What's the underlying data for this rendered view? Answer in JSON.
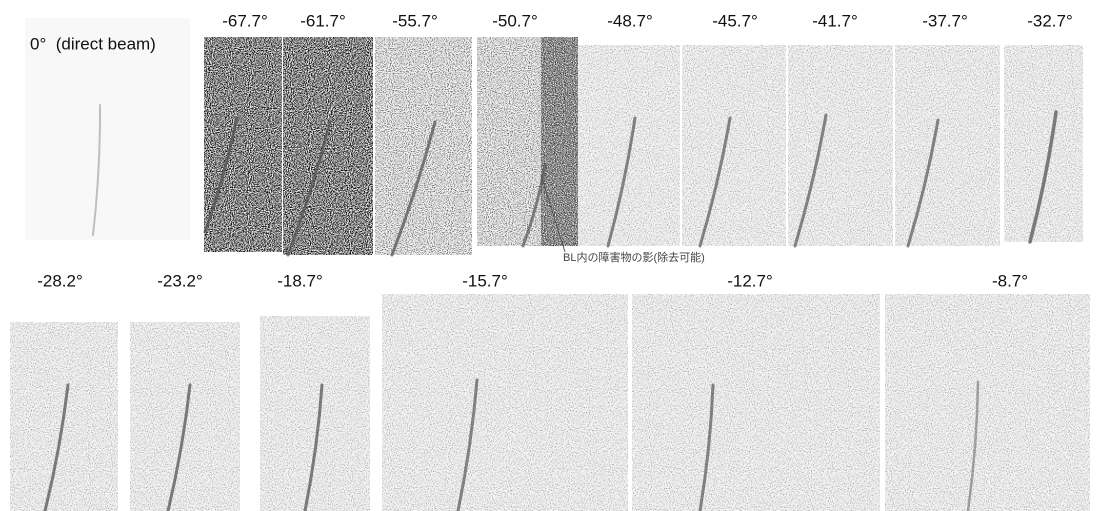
{
  "panels": [
    {
      "label": "0°  (direct beam)"
    },
    {
      "label": "-67.7°"
    },
    {
      "label": "-61.7°"
    },
    {
      "label": "-55.7°"
    },
    {
      "label": "-50.7°"
    },
    {
      "label": "-48.7°"
    },
    {
      "label": "-45.7°"
    },
    {
      "label": "-41.7°"
    },
    {
      "label": "-37.7°"
    },
    {
      "label": "-32.7°"
    },
    {
      "label": "-28.2°"
    },
    {
      "label": "-23.2°"
    },
    {
      "label": "-18.7°"
    },
    {
      "label": "-15.7°"
    },
    {
      "label": "-12.7°"
    },
    {
      "label": "-8.7°"
    }
  ],
  "annotation": "BL内の障害物の影(除去可能)"
}
